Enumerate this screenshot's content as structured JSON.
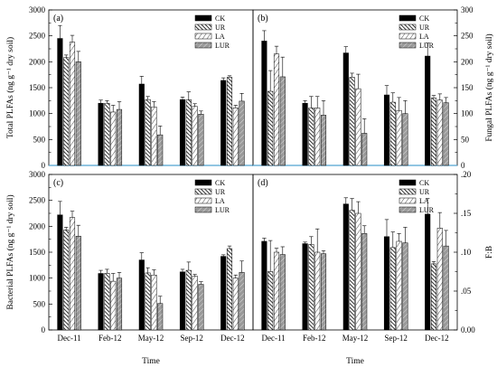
{
  "colors": {
    "CK": "#000000",
    "UR": "#ffffff",
    "LA": "#ffffff",
    "LUR": "#9a9a9a",
    "zero_line": "#4fa3d1",
    "axis": "#000000"
  },
  "chart_data": [
    {
      "type": "bar",
      "panel": "(a)",
      "ylabel": "Total PLFAs (ng g⁻¹ dry soil)",
      "y_axis_side": "left",
      "ylim": [
        0,
        3000
      ],
      "yticks": [
        "0",
        "500",
        "1000",
        "1500",
        "2000",
        "2500",
        "3000"
      ],
      "categories": [
        "Dec-11",
        "Feb-12",
        "May-12",
        "Sep-12",
        "Dec-12"
      ],
      "series": [
        {
          "name": "CK",
          "values": [
            2450,
            1200,
            1570,
            1270,
            1640
          ],
          "errors": [
            250,
            60,
            150,
            50,
            50
          ]
        },
        {
          "name": "UR",
          "values": [
            2080,
            1200,
            1270,
            1270,
            1700
          ],
          "errors": [
            50,
            50,
            60,
            150,
            30
          ]
        },
        {
          "name": "LA",
          "values": [
            2380,
            1030,
            1130,
            1140,
            1110
          ],
          "errors": [
            130,
            130,
            100,
            50,
            50
          ]
        },
        {
          "name": "LUR",
          "values": [
            2000,
            1080,
            590,
            990,
            1240
          ],
          "errors": [
            200,
            150,
            170,
            60,
            150
          ]
        }
      ],
      "legend": "top-right"
    },
    {
      "type": "bar",
      "panel": "(b)",
      "ylabel": "Fungal PLFAs (ng g⁻¹ dry soil)",
      "y_axis_side": "right",
      "ylim": [
        0,
        300
      ],
      "yticks": [
        "0",
        "50",
        "100",
        "150",
        "200",
        "250",
        "300"
      ],
      "categories": [
        "Dec-11",
        "Feb-12",
        "May-12",
        "Sep-12",
        "Dec-12"
      ],
      "series": [
        {
          "name": "CK",
          "values": [
            240,
            120,
            217,
            136,
            211
          ],
          "errors": [
            20,
            5,
            12,
            18,
            25
          ]
        },
        {
          "name": "UR",
          "values": [
            143,
            111,
            170,
            122,
            130
          ],
          "errors": [
            40,
            22,
            8,
            18,
            5
          ]
        },
        {
          "name": "LA",
          "values": [
            215,
            111,
            148,
            106,
            126
          ],
          "errors": [
            15,
            22,
            28,
            25,
            12
          ]
        },
        {
          "name": "LUR",
          "values": [
            171,
            97,
            62,
            100,
            121
          ],
          "errors": [
            38,
            28,
            28,
            25,
            10
          ]
        }
      ],
      "legend": "top-right"
    },
    {
      "type": "bar",
      "panel": "(c)",
      "ylabel": "Bacterial PLFAs (ng g⁻¹ dry soil)",
      "y_axis_side": "left",
      "ylim": [
        0,
        3000
      ],
      "yticks": [
        "0",
        "500",
        "1000",
        "1500",
        "2000",
        "2500",
        "3000"
      ],
      "categories": [
        "Dec-11",
        "Feb-12",
        "May-12",
        "Sep-12",
        "Dec-12"
      ],
      "series": [
        {
          "name": "CK",
          "values": [
            2220,
            1090,
            1350,
            1120,
            1420
          ],
          "errors": [
            260,
            60,
            140,
            50,
            30
          ]
        },
        {
          "name": "UR",
          "values": [
            1930,
            1090,
            1100,
            1150,
            1570
          ],
          "errors": [
            50,
            80,
            100,
            160,
            50
          ]
        },
        {
          "name": "LA",
          "values": [
            2170,
            940,
            1060,
            1040,
            1000
          ],
          "errors": [
            120,
            150,
            100,
            30,
            60
          ]
        },
        {
          "name": "LUR",
          "values": [
            1810,
            1000,
            510,
            880,
            1110
          ],
          "errors": [
            210,
            110,
            140,
            50,
            220
          ]
        }
      ],
      "legend": "top-right"
    },
    {
      "type": "bar",
      "panel": "(d)",
      "ylabel": "F:B",
      "y_axis_side": "right",
      "ylim": [
        0,
        0.2
      ],
      "yticks": [
        "0.00",
        ".05",
        ".10",
        ".15",
        ".20"
      ],
      "categories": [
        "Dec-11",
        "Feb-12",
        "May-12",
        "Sep-12",
        "Dec-12"
      ],
      "series": [
        {
          "name": "CK",
          "values": [
            0.114,
            0.111,
            0.162,
            0.12,
            0.149
          ],
          "errors": [
            0.004,
            0.002,
            0.008,
            0.022,
            0.02
          ]
        },
        {
          "name": "UR",
          "values": [
            0.075,
            0.11,
            0.154,
            0.106,
            0.085
          ],
          "errors": [
            0.04,
            0.01,
            0.015,
            0.02,
            0.003
          ]
        },
        {
          "name": "LA",
          "values": [
            0.1,
            0.1,
            0.15,
            0.114,
            0.131
          ],
          "errors": [
            0.005,
            0.03,
            0.015,
            0.01,
            0.02
          ]
        },
        {
          "name": "LUR",
          "values": [
            0.097,
            0.098,
            0.124,
            0.112,
            0.108
          ],
          "errors": [
            0.01,
            0.004,
            0.01,
            0.02,
            0.02
          ]
        }
      ],
      "legend": "top-right"
    }
  ],
  "xlabel": "Time"
}
